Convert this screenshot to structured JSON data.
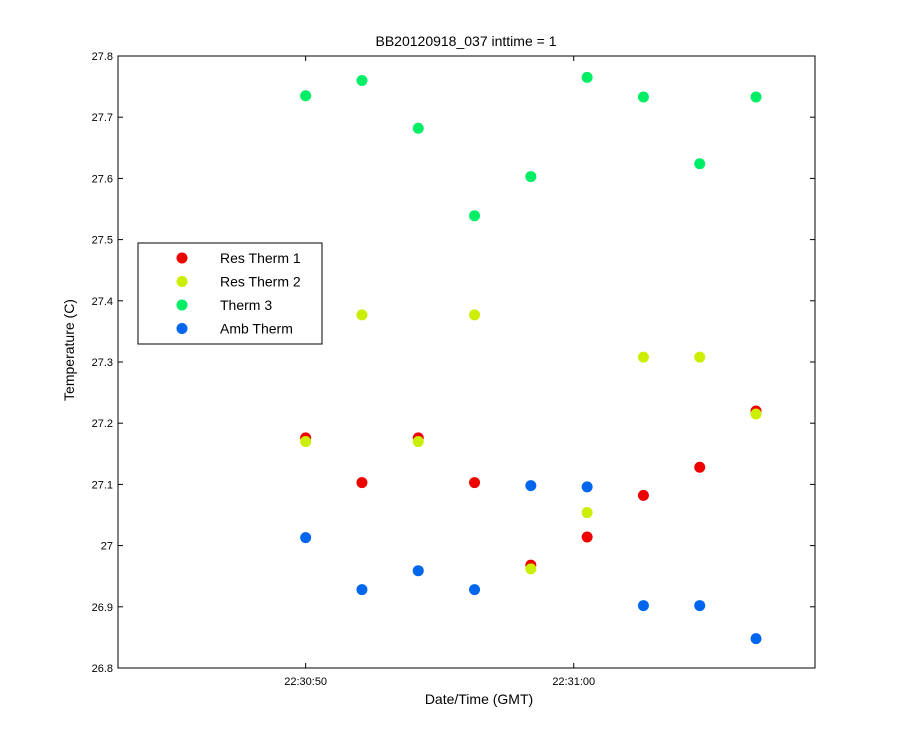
{
  "chart_data": {
    "type": "scatter",
    "title": "BB20120918_037 inttime = 1",
    "xlabel": "Date/Time (GMT)",
    "ylabel": "Temperature (C)",
    "x_unit": "seconds",
    "xlim": [
      43,
      69
    ],
    "ylim": [
      26.8,
      27.8
    ],
    "x_ticks": [
      {
        "value": 50,
        "label": "22:30:50"
      },
      {
        "value": 60,
        "label": "22:31:00"
      }
    ],
    "y_ticks": [
      {
        "value": 26.8,
        "label": "26.8"
      },
      {
        "value": 26.9,
        "label": "26.9"
      },
      {
        "value": 27.0,
        "label": "27"
      },
      {
        "value": 27.1,
        "label": "27.1"
      },
      {
        "value": 27.2,
        "label": "27.2"
      },
      {
        "value": 27.3,
        "label": "27.3"
      },
      {
        "value": 27.4,
        "label": "27.4"
      },
      {
        "value": 27.5,
        "label": "27.5"
      },
      {
        "value": 27.6,
        "label": "27.6"
      },
      {
        "value": 27.7,
        "label": "27.7"
      },
      {
        "value": 27.8,
        "label": "27.8"
      }
    ],
    "grid": false,
    "legend_position": "left-center",
    "series": [
      {
        "name": "Res Therm 1",
        "color": "#ee0000",
        "points": [
          [
            50.0,
            27.176
          ],
          [
            52.1,
            27.103
          ],
          [
            54.2,
            27.176
          ],
          [
            56.3,
            27.103
          ],
          [
            58.4,
            26.968
          ],
          [
            60.5,
            27.014
          ],
          [
            62.6,
            27.082
          ],
          [
            64.7,
            27.128
          ],
          [
            66.8,
            27.22
          ]
        ]
      },
      {
        "name": "Res Therm 2",
        "color": "#ccee00",
        "points": [
          [
            50.0,
            27.17
          ],
          [
            52.1,
            27.377
          ],
          [
            54.2,
            27.17
          ],
          [
            56.3,
            27.377
          ],
          [
            58.4,
            26.962
          ],
          [
            60.5,
            27.054
          ],
          [
            62.6,
            27.308
          ],
          [
            64.7,
            27.308
          ],
          [
            66.8,
            27.215
          ]
        ]
      },
      {
        "name": "Therm 3",
        "color": "#00ee66",
        "points": [
          [
            50.0,
            27.735
          ],
          [
            52.1,
            27.76
          ],
          [
            54.2,
            27.682
          ],
          [
            56.3,
            27.539
          ],
          [
            58.4,
            27.603
          ],
          [
            60.5,
            27.765
          ],
          [
            62.6,
            27.733
          ],
          [
            64.7,
            27.624
          ],
          [
            66.8,
            27.733
          ]
        ]
      },
      {
        "name": "Amb Therm",
        "color": "#0066ee",
        "points": [
          [
            50.0,
            27.013
          ],
          [
            52.1,
            26.928
          ],
          [
            54.2,
            26.959
          ],
          [
            56.3,
            26.928
          ],
          [
            58.4,
            27.098
          ],
          [
            60.5,
            27.096
          ],
          [
            62.6,
            26.902
          ],
          [
            64.7,
            26.902
          ],
          [
            66.8,
            26.848
          ]
        ]
      }
    ]
  }
}
